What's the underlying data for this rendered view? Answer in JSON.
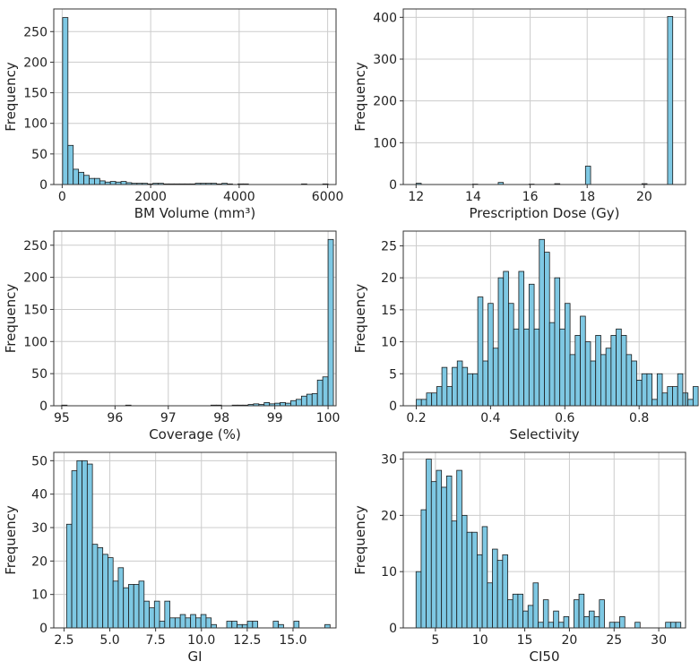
{
  "style": {
    "bar_fill": "#7EC8E3",
    "bar_edge": "#1a1a1a",
    "grid": "#cccccc",
    "axis": "#333333"
  },
  "chart_data": [
    {
      "type": "bar",
      "name": "bm-volume-histogram",
      "xlabel": "BM Volume (mm³)",
      "ylabel": "Frequency",
      "xlim": [
        -190,
        6190
      ],
      "ylim": [
        0,
        287
      ],
      "xticks": [
        {
          "v": 0,
          "label": "0"
        },
        {
          "v": 2000,
          "label": "2000"
        },
        {
          "v": 4000,
          "label": "4000"
        },
        {
          "v": 6000,
          "label": "6000"
        }
      ],
      "yticks": [
        {
          "v": 0,
          "label": "0"
        },
        {
          "v": 50,
          "label": "50"
        },
        {
          "v": 100,
          "label": "100"
        },
        {
          "v": 150,
          "label": "150"
        },
        {
          "v": 200,
          "label": "200"
        },
        {
          "v": 250,
          "label": "250"
        }
      ],
      "bin_start": 10,
      "bin_width": 120,
      "values": [
        273,
        64,
        25,
        20,
        15,
        10,
        10,
        6,
        4,
        5,
        4,
        5,
        3,
        2,
        2,
        2,
        1,
        2,
        2,
        1,
        1,
        1,
        1,
        1,
        1,
        2,
        2,
        2,
        2,
        1,
        2,
        1,
        0,
        1,
        1,
        0,
        0,
        0,
        0,
        0,
        0,
        0,
        0,
        0,
        0,
        1,
        0,
        0,
        0,
        1
      ]
    },
    {
      "type": "bar",
      "name": "prescription-dose-histogram",
      "xlabel": "Prescription Dose (Gy)",
      "ylabel": "Frequency",
      "xlim": [
        11.55,
        21.45
      ],
      "ylim": [
        0,
        420
      ],
      "xticks": [
        {
          "v": 12,
          "label": "12"
        },
        {
          "v": 14,
          "label": "14"
        },
        {
          "v": 16,
          "label": "16"
        },
        {
          "v": 18,
          "label": "18"
        },
        {
          "v": 20,
          "label": "20"
        }
      ],
      "yticks": [
        {
          "v": 0,
          "label": "0"
        },
        {
          "v": 100,
          "label": "100"
        },
        {
          "v": 200,
          "label": "200"
        },
        {
          "v": 300,
          "label": "300"
        },
        {
          "v": 400,
          "label": "400"
        }
      ],
      "bin_start": 12,
      "bin_width": 0.18,
      "values": [
        3,
        0,
        0,
        0,
        0,
        0,
        0,
        0,
        0,
        0,
        0,
        1,
        0,
        0,
        0,
        0,
        5,
        0,
        0,
        0,
        0,
        0,
        1,
        0,
        0,
        0,
        0,
        2,
        0,
        0,
        0,
        0,
        0,
        44,
        0,
        0,
        0,
        0,
        0,
        0,
        0,
        0,
        0,
        0,
        2,
        0,
        0,
        0,
        0,
        402
      ]
    },
    {
      "type": "bar",
      "name": "coverage-histogram",
      "xlabel": "Coverage (%)",
      "ylabel": "Frequency",
      "xlim": [
        94.85,
        100.15
      ],
      "ylim": [
        0,
        272
      ],
      "xticks": [
        {
          "v": 95,
          "label": "95"
        },
        {
          "v": 96,
          "label": "96"
        },
        {
          "v": 97,
          "label": "97"
        },
        {
          "v": 98,
          "label": "98"
        },
        {
          "v": 99,
          "label": "99"
        },
        {
          "v": 100,
          "label": "100"
        }
      ],
      "yticks": [
        {
          "v": 0,
          "label": "0"
        },
        {
          "v": 50,
          "label": "50"
        },
        {
          "v": 100,
          "label": "100"
        },
        {
          "v": 150,
          "label": "150"
        },
        {
          "v": 200,
          "label": "200"
        },
        {
          "v": 250,
          "label": "250"
        }
      ],
      "bin_start": 95.0,
      "bin_width": 0.1,
      "values": [
        1,
        0,
        0,
        0,
        0,
        0,
        0,
        0,
        0,
        0,
        0,
        0,
        1,
        0,
        0,
        0,
        0,
        0,
        0,
        0,
        0,
        0,
        0,
        0,
        0,
        0,
        0,
        0,
        1,
        1,
        0,
        0,
        1,
        1,
        1,
        2,
        3,
        2,
        5,
        3,
        4,
        5,
        4,
        8,
        10,
        15,
        18,
        19,
        40,
        45,
        259
      ]
    },
    {
      "type": "bar",
      "name": "selectivity-histogram",
      "xlabel": "Selectivity",
      "ylabel": "Frequency",
      "xlim": [
        0.165,
        0.925
      ],
      "ylim": [
        0,
        27.3
      ],
      "xticks": [
        {
          "v": 0.2,
          "label": "0.2"
        },
        {
          "v": 0.4,
          "label": "0.4"
        },
        {
          "v": 0.6,
          "label": "0.6"
        },
        {
          "v": 0.8,
          "label": "0.8"
        }
      ],
      "yticks": [
        {
          "v": 0,
          "label": "0"
        },
        {
          "v": 5,
          "label": "5"
        },
        {
          "v": 10,
          "label": "10"
        },
        {
          "v": 15,
          "label": "15"
        },
        {
          "v": 20,
          "label": "20"
        },
        {
          "v": 25,
          "label": "25"
        }
      ],
      "bin_start": 0.2,
      "bin_width": 0.0138,
      "values": [
        1,
        1,
        2,
        2,
        3,
        6,
        3,
        6,
        7,
        6,
        5,
        5,
        17,
        7,
        16,
        9,
        20,
        21,
        16,
        12,
        21,
        12,
        19,
        12,
        26,
        24,
        13,
        20,
        12,
        16,
        8,
        11,
        14,
        10,
        7,
        11,
        8,
        9,
        11,
        12,
        11,
        8,
        7,
        4,
        5,
        5,
        1,
        5,
        2,
        3,
        3,
        5,
        2,
        1,
        3
      ]
    },
    {
      "type": "bar",
      "name": "gi-histogram",
      "xlabel": "GI",
      "ylabel": "Frequency",
      "xlim": [
        1.94,
        17.35
      ],
      "ylim": [
        0,
        52.5
      ],
      "xticks": [
        {
          "v": 2.5,
          "label": "2.5"
        },
        {
          "v": 5.0,
          "label": "5.0"
        },
        {
          "v": 7.5,
          "label": "7.5"
        },
        {
          "v": 10.0,
          "label": "10.0"
        },
        {
          "v": 12.5,
          "label": "12.5"
        },
        {
          "v": 15.0,
          "label": "15.0"
        }
      ],
      "yticks": [
        {
          "v": 0,
          "label": "0"
        },
        {
          "v": 10,
          "label": "10"
        },
        {
          "v": 20,
          "label": "20"
        },
        {
          "v": 30,
          "label": "30"
        },
        {
          "v": 40,
          "label": "40"
        },
        {
          "v": 50,
          "label": "50"
        }
      ],
      "bin_start": 2.64,
      "bin_width": 0.282,
      "values": [
        31,
        47,
        50,
        50,
        49,
        25,
        24,
        22,
        21,
        14,
        18,
        12,
        13,
        13,
        14,
        8,
        6,
        8,
        2,
        8,
        3,
        3,
        4,
        3,
        4,
        3,
        4,
        3,
        1,
        0,
        0,
        2,
        2,
        1,
        1,
        2,
        2,
        0,
        0,
        0,
        2,
        1,
        0,
        0,
        2,
        0,
        0,
        0,
        0,
        0,
        1
      ]
    },
    {
      "type": "bar",
      "name": "ci50-histogram",
      "xlabel": "CI50",
      "ylabel": "Frequency",
      "xlim": [
        1.4,
        33.0
      ],
      "ylim": [
        0,
        31.2
      ],
      "xticks": [
        {
          "v": 5,
          "label": "5"
        },
        {
          "v": 10,
          "label": "10"
        },
        {
          "v": 15,
          "label": "15"
        },
        {
          "v": 20,
          "label": "20"
        },
        {
          "v": 25,
          "label": "25"
        },
        {
          "v": 30,
          "label": "30"
        }
      ],
      "yticks": [
        {
          "v": 0,
          "label": "0"
        },
        {
          "v": 10,
          "label": "10"
        },
        {
          "v": 20,
          "label": "20"
        },
        {
          "v": 30,
          "label": "30"
        }
      ],
      "bin_start": 2.83,
      "bin_width": 0.57,
      "values": [
        10,
        21,
        30,
        26,
        28,
        25,
        27,
        19,
        28,
        20,
        17,
        17,
        13,
        18,
        8,
        14,
        12,
        13,
        5,
        6,
        6,
        3,
        4,
        8,
        1,
        5,
        1,
        3,
        1,
        2,
        0,
        5,
        6,
        2,
        3,
        2,
        5,
        0,
        1,
        1,
        2,
        0,
        0,
        1,
        0,
        0,
        0,
        0,
        0,
        1,
        1,
        1
      ]
    }
  ]
}
